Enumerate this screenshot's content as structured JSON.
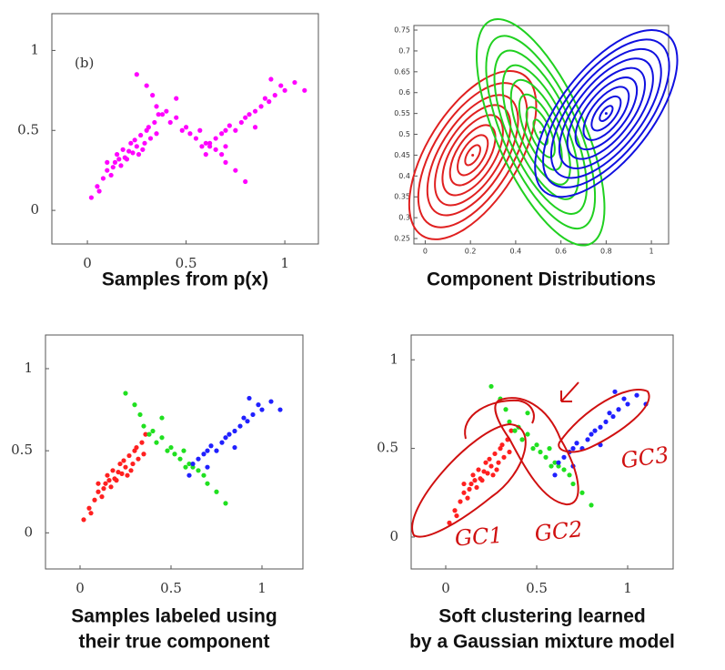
{
  "chart_data": [
    {
      "type": "scatter",
      "title_lines": [
        "Samples from p(x)"
      ],
      "annotation": "(b)",
      "xlim": [
        -0.18,
        1.17
      ],
      "ylim": [
        -0.21,
        1.23
      ],
      "xticks": [
        0,
        0.5,
        1
      ],
      "yticks": [
        0,
        0.5,
        1
      ],
      "series": [
        {
          "color": "#ff00ff",
          "x": [
            0.02,
            0.05,
            0.08,
            0.1,
            0.12,
            0.14,
            0.15,
            0.17,
            0.18,
            0.2,
            0.22,
            0.23,
            0.25,
            0.27,
            0.28,
            0.3,
            0.32,
            0.34,
            0.36,
            0.1,
            0.13,
            0.19,
            0.24,
            0.29,
            0.06,
            0.16,
            0.21,
            0.26,
            0.31,
            0.35,
            0.3,
            0.35,
            0.38,
            0.4,
            0.42,
            0.45,
            0.48,
            0.5,
            0.52,
            0.55,
            0.57,
            0.6,
            0.62,
            0.65,
            0.68,
            0.7,
            0.75,
            0.8,
            0.45,
            0.58,
            0.25,
            0.33,
            0.62,
            0.65,
            0.68,
            0.7,
            0.72,
            0.75,
            0.78,
            0.8,
            0.82,
            0.85,
            0.88,
            0.9,
            0.92,
            0.95,
            0.98,
            1.0,
            1.05,
            1.1,
            0.7,
            0.85,
            0.6,
            0.93
          ],
          "y": [
            0.08,
            0.15,
            0.2,
            0.25,
            0.22,
            0.3,
            0.35,
            0.28,
            0.38,
            0.32,
            0.42,
            0.36,
            0.4,
            0.47,
            0.38,
            0.5,
            0.45,
            0.55,
            0.6,
            0.3,
            0.27,
            0.33,
            0.44,
            0.42,
            0.12,
            0.32,
            0.37,
            0.35,
            0.52,
            0.48,
            0.78,
            0.65,
            0.6,
            0.62,
            0.55,
            0.58,
            0.5,
            0.52,
            0.48,
            0.45,
            0.5,
            0.42,
            0.4,
            0.38,
            0.35,
            0.3,
            0.25,
            0.18,
            0.7,
            0.4,
            0.85,
            0.72,
            0.42,
            0.45,
            0.48,
            0.5,
            0.53,
            0.5,
            0.55,
            0.58,
            0.6,
            0.62,
            0.65,
            0.7,
            0.68,
            0.72,
            0.78,
            0.75,
            0.8,
            0.75,
            0.4,
            0.52,
            0.35,
            0.82
          ]
        }
      ]
    },
    {
      "type": "contour",
      "title_lines": [
        "Component Distributions"
      ],
      "xlim": [
        -0.05,
        1.076
      ],
      "ylim": [
        0.237,
        0.761
      ],
      "xticks": [
        0,
        0.2,
        0.4,
        0.6,
        0.8,
        1
      ],
      "yticks": [
        0.25,
        0.3,
        0.35,
        0.4,
        0.45,
        0.5,
        0.55,
        0.6,
        0.65,
        0.7,
        0.75
      ],
      "components": [
        {
          "color": "#e02020",
          "mean": [
            0.21,
            0.45
          ],
          "angle": -58,
          "aspect": 0.48,
          "contours": [
            0.05,
            0.1,
            0.15,
            0.2,
            0.25,
            0.3,
            0.36,
            0.42
          ]
        },
        {
          "color": "#20d020",
          "mean": [
            0.51,
            0.505
          ],
          "angle": 66,
          "aspect": 0.36,
          "contours": [
            0.06,
            0.12,
            0.18,
            0.25,
            0.32,
            0.39,
            0.46,
            0.54
          ]
        },
        {
          "color": "#1010e0",
          "mean": [
            0.8,
            0.55
          ],
          "angle": -52,
          "aspect": 0.46,
          "contours": [
            0.04,
            0.09,
            0.14,
            0.19,
            0.24,
            0.29,
            0.34,
            0.39,
            0.44
          ]
        }
      ]
    },
    {
      "type": "scatter",
      "title_lines": [
        "Samples labeled using",
        "their true component"
      ],
      "xlim": [
        -0.19,
        1.225
      ],
      "ylim": [
        -0.22,
        1.205
      ],
      "xticks": [
        0,
        0.5,
        1
      ],
      "yticks": [
        0,
        0.5,
        1
      ],
      "series": [
        {
          "color": "#ff2020",
          "x": [
            0.02,
            0.05,
            0.08,
            0.1,
            0.12,
            0.14,
            0.15,
            0.17,
            0.18,
            0.2,
            0.22,
            0.23,
            0.25,
            0.27,
            0.28,
            0.3,
            0.32,
            0.34,
            0.36,
            0.1,
            0.13,
            0.19,
            0.24,
            0.29,
            0.06,
            0.16,
            0.21,
            0.26,
            0.31,
            0.35
          ],
          "y": [
            0.08,
            0.15,
            0.2,
            0.25,
            0.22,
            0.3,
            0.35,
            0.28,
            0.38,
            0.32,
            0.42,
            0.36,
            0.4,
            0.47,
            0.38,
            0.5,
            0.45,
            0.55,
            0.6,
            0.3,
            0.27,
            0.33,
            0.44,
            0.42,
            0.12,
            0.32,
            0.37,
            0.35,
            0.52,
            0.48
          ]
        },
        {
          "color": "#20e020",
          "x": [
            0.3,
            0.35,
            0.38,
            0.4,
            0.42,
            0.45,
            0.48,
            0.5,
            0.52,
            0.55,
            0.57,
            0.6,
            0.62,
            0.65,
            0.68,
            0.7,
            0.75,
            0.8,
            0.45,
            0.58,
            0.25,
            0.33
          ],
          "y": [
            0.78,
            0.65,
            0.6,
            0.62,
            0.55,
            0.58,
            0.5,
            0.52,
            0.48,
            0.45,
            0.5,
            0.42,
            0.4,
            0.38,
            0.35,
            0.3,
            0.25,
            0.18,
            0.7,
            0.4,
            0.85,
            0.72
          ]
        },
        {
          "color": "#2020ff",
          "x": [
            0.62,
            0.65,
            0.68,
            0.7,
            0.72,
            0.75,
            0.78,
            0.8,
            0.82,
            0.85,
            0.88,
            0.9,
            0.92,
            0.95,
            0.98,
            1.0,
            1.05,
            1.1,
            0.7,
            0.85,
            0.6,
            0.93
          ],
          "y": [
            0.42,
            0.45,
            0.48,
            0.5,
            0.53,
            0.5,
            0.55,
            0.58,
            0.6,
            0.62,
            0.65,
            0.7,
            0.68,
            0.72,
            0.78,
            0.75,
            0.8,
            0.75,
            0.4,
            0.52,
            0.35,
            0.82
          ]
        }
      ]
    },
    {
      "type": "scatter",
      "title_lines": [
        "Soft clustering learned",
        "by a Gaussian mixture model"
      ],
      "handwritten": [
        "GC1",
        "GC2",
        "GC3"
      ],
      "xlim": [
        -0.19,
        1.25
      ],
      "ylim": [
        -0.18,
        1.14
      ],
      "xticks": [
        0,
        0.5,
        1
      ],
      "yticks": [
        0,
        0.5,
        1
      ],
      "series": [
        {
          "color": "#ff2020",
          "x": [
            0.02,
            0.05,
            0.08,
            0.1,
            0.12,
            0.14,
            0.15,
            0.17,
            0.18,
            0.2,
            0.22,
            0.23,
            0.25,
            0.27,
            0.28,
            0.3,
            0.32,
            0.34,
            0.36,
            0.1,
            0.13,
            0.19,
            0.24,
            0.29,
            0.06,
            0.16,
            0.21,
            0.26,
            0.31,
            0.35
          ],
          "y": [
            0.08,
            0.15,
            0.2,
            0.25,
            0.22,
            0.3,
            0.35,
            0.28,
            0.38,
            0.32,
            0.42,
            0.36,
            0.4,
            0.47,
            0.38,
            0.5,
            0.45,
            0.55,
            0.6,
            0.3,
            0.27,
            0.33,
            0.44,
            0.42,
            0.12,
            0.32,
            0.37,
            0.35,
            0.52,
            0.48
          ]
        },
        {
          "color": "#20e020",
          "x": [
            0.3,
            0.35,
            0.38,
            0.4,
            0.42,
            0.45,
            0.48,
            0.5,
            0.52,
            0.55,
            0.57,
            0.6,
            0.62,
            0.65,
            0.68,
            0.7,
            0.75,
            0.8,
            0.45,
            0.58,
            0.25,
            0.33
          ],
          "y": [
            0.78,
            0.65,
            0.6,
            0.62,
            0.55,
            0.58,
            0.5,
            0.52,
            0.48,
            0.45,
            0.5,
            0.42,
            0.4,
            0.38,
            0.35,
            0.3,
            0.25,
            0.18,
            0.7,
            0.4,
            0.85,
            0.72
          ]
        },
        {
          "color": "#2020ff",
          "x": [
            0.62,
            0.65,
            0.68,
            0.7,
            0.72,
            0.75,
            0.78,
            0.8,
            0.82,
            0.85,
            0.88,
            0.9,
            0.92,
            0.95,
            0.98,
            1.0,
            1.05,
            1.1,
            0.7,
            0.85,
            0.6,
            0.93
          ],
          "y": [
            0.42,
            0.45,
            0.48,
            0.5,
            0.53,
            0.5,
            0.55,
            0.58,
            0.6,
            0.62,
            0.65,
            0.7,
            0.68,
            0.72,
            0.78,
            0.75,
            0.8,
            0.75,
            0.4,
            0.52,
            0.35,
            0.82
          ]
        }
      ]
    }
  ]
}
